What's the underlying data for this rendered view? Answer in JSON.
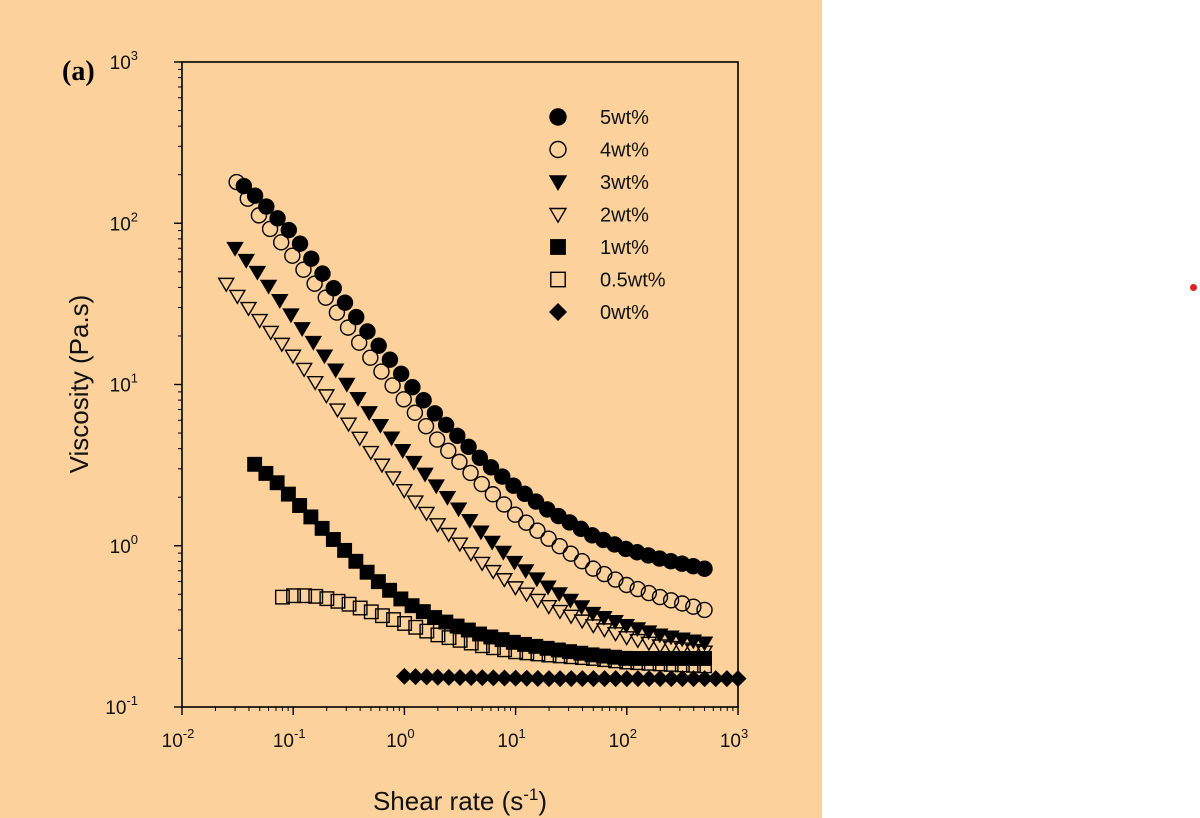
{
  "colors": {
    "panel_background": "#fcd19c",
    "axis": "#000000",
    "marker": "#000000",
    "outside_dot": "#e02020"
  },
  "chart_data": {
    "type": "scatter",
    "panel_label": "(a)",
    "xlabel": "Shear rate (s",
    "xlabel_sup": "-1",
    "xlabel_end": ")",
    "ylabel": "Viscosity (Pa.s)",
    "xscale": "log",
    "yscale": "log",
    "xlim": [
      0.01,
      1000
    ],
    "ylim": [
      0.1,
      1000
    ],
    "grid": false,
    "legend_position": "top-right",
    "x_ticks": [
      {
        "base": "10",
        "exp": "-2"
      },
      {
        "base": "10",
        "exp": "-1"
      },
      {
        "base": "10",
        "exp": "0"
      },
      {
        "base": "10",
        "exp": "1"
      },
      {
        "base": "10",
        "exp": "2"
      },
      {
        "base": "10",
        "exp": "3"
      }
    ],
    "y_ticks": [
      {
        "base": "10",
        "exp": "-1"
      },
      {
        "base": "10",
        "exp": "0"
      },
      {
        "base": "10",
        "exp": "1"
      },
      {
        "base": "10",
        "exp": "2"
      },
      {
        "base": "10",
        "exp": "3"
      }
    ],
    "series": [
      {
        "name": "5wt%",
        "marker": "circle-filled",
        "x": [
          0.036,
          0.05,
          0.1,
          0.2,
          0.5,
          1,
          2,
          5,
          10,
          20,
          50,
          100,
          200,
          500
        ],
        "y": [
          170,
          140,
          85,
          45,
          20,
          11,
          6.3,
          3.4,
          2.3,
          1.65,
          1.15,
          0.95,
          0.83,
          0.72
        ]
      },
      {
        "name": "4wt%",
        "marker": "circle-open",
        "x": [
          0.031,
          0.05,
          0.1,
          0.2,
          0.5,
          1,
          2,
          5,
          10,
          20,
          50,
          100,
          200,
          500
        ],
        "y": [
          180,
          110,
          62,
          34,
          14.5,
          8,
          4.5,
          2.4,
          1.55,
          1.1,
          0.72,
          0.57,
          0.48,
          0.4
        ]
      },
      {
        "name": "3wt%",
        "marker": "triangle-down-filled",
        "x": [
          0.03,
          0.05,
          0.1,
          0.2,
          0.5,
          1,
          2,
          5,
          10,
          20,
          50,
          100,
          200,
          500
        ],
        "y": [
          70,
          48,
          26,
          14.5,
          6.5,
          3.8,
          2.3,
          1.2,
          0.78,
          0.55,
          0.38,
          0.32,
          0.28,
          0.25
        ]
      },
      {
        "name": "2wt%",
        "marker": "triangle-down-open",
        "x": [
          0.025,
          0.05,
          0.1,
          0.2,
          0.5,
          1,
          2,
          5,
          10,
          20,
          50,
          100,
          200,
          500
        ],
        "y": [
          42,
          25,
          15,
          8.5,
          3.8,
          2.2,
          1.35,
          0.78,
          0.55,
          0.42,
          0.32,
          0.27,
          0.24,
          0.22
        ]
      },
      {
        "name": "1wt%",
        "marker": "square-filled",
        "x": [
          0.045,
          0.07,
          0.1,
          0.2,
          0.5,
          1,
          2,
          5,
          10,
          20,
          50,
          100,
          200,
          500
        ],
        "y": [
          3.2,
          2.5,
          1.95,
          1.2,
          0.65,
          0.45,
          0.35,
          0.28,
          0.25,
          0.23,
          0.21,
          0.2,
          0.2,
          0.2
        ]
      },
      {
        "name": "0.5wt%",
        "marker": "square-open",
        "x": [
          0.08,
          0.1,
          0.15,
          0.2,
          0.3,
          0.5,
          1,
          2,
          5,
          10,
          20,
          50,
          100,
          200,
          500
        ],
        "y": [
          0.48,
          0.49,
          0.49,
          0.47,
          0.44,
          0.39,
          0.33,
          0.28,
          0.24,
          0.22,
          0.21,
          0.2,
          0.19,
          0.185,
          0.18
        ]
      },
      {
        "name": "0wt%",
        "marker": "diamond-filled",
        "x": [
          1,
          2,
          5,
          10,
          20,
          50,
          100,
          200,
          500,
          1000
        ],
        "y": [
          0.155,
          0.153,
          0.152,
          0.151,
          0.15,
          0.15,
          0.15,
          0.15,
          0.15,
          0.15
        ]
      }
    ]
  }
}
